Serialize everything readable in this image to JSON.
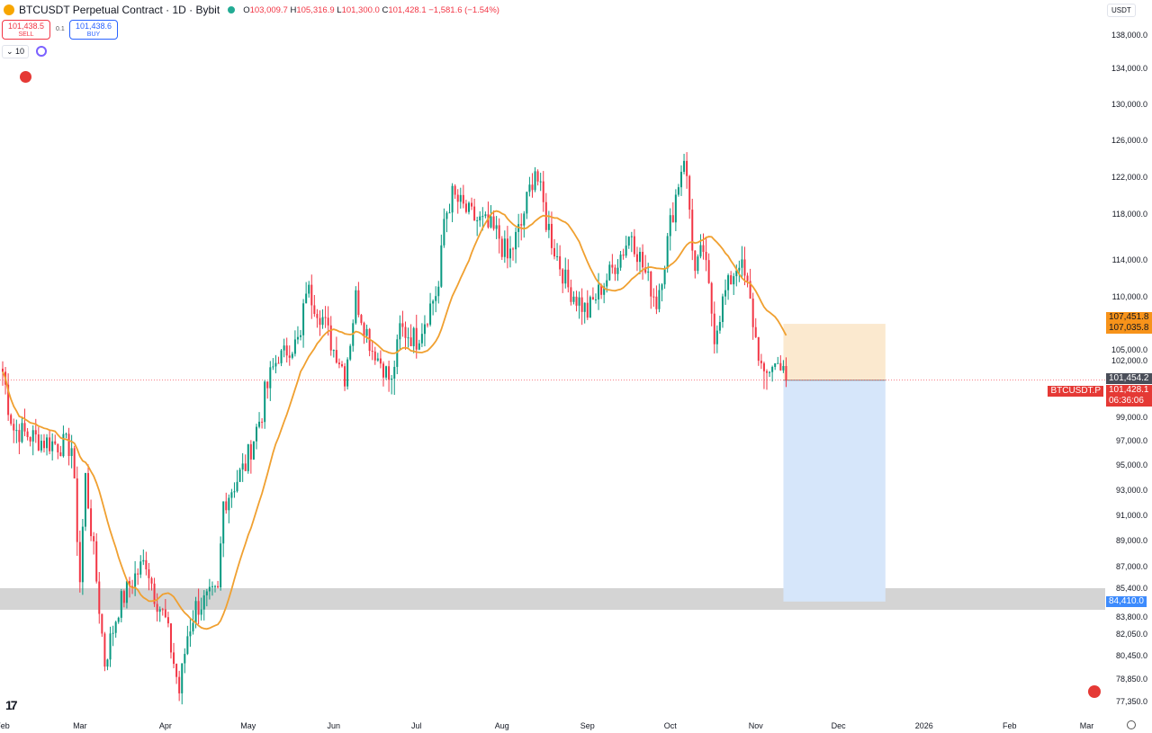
{
  "header": {
    "title": "BTCUSDT Perpetual Contract · 1D · Bybit",
    "o_label": "O",
    "o": "103,009.7",
    "h_label": "H",
    "h": "105,316.9",
    "l_label": "L",
    "l": "101,300.0",
    "c_label": "C",
    "c": "101,428.1",
    "change": "−1,581.6 (−1.54%)"
  },
  "trade": {
    "sell_price": "101,438.5",
    "sell_label": "SELL",
    "spread": "0.1",
    "buy_price": "101,438.6",
    "buy_label": "BUY",
    "lots": "10"
  },
  "currency": "USDT",
  "tags": {
    "tp1": "107,451.8",
    "tp2": "107,035.8",
    "stop_alt": "101,454.2",
    "symbol": "BTCUSDT.P",
    "last": "101,428.1",
    "countdown": "06:36:06",
    "target": "84,410.0"
  },
  "colors": {
    "up": "#089981",
    "down": "#f23645",
    "ma": "#f0a030",
    "profit": "#d6e6fa",
    "loss": "#fbe9cf",
    "zone": "#d4d4d4"
  },
  "chart_data": {
    "type": "candlestick",
    "title": "BTCUSDT Perpetual Contract · 1D · Bybit",
    "y_ticks": [
      "138,000.0",
      "134,000.0",
      "130,000.0",
      "126,000.0",
      "122,000.0",
      "118,000.0",
      "114,000.0",
      "110,000.0",
      "105,000.0",
      "102,000.0",
      "99,000.0",
      "97,000.0",
      "95,000.0",
      "93,000.0",
      "91,000.0",
      "89,000.0",
      "87,000.0",
      "85,400.0",
      "83,800.0",
      "82,050.0",
      "80,450.0",
      "78,850.0",
      "77,350.0"
    ],
    "y_tick_values": [
      138000,
      134000,
      130000,
      126000,
      122000,
      118000,
      114000,
      110000,
      105000,
      102000,
      99000,
      97000,
      95000,
      93000,
      91000,
      89000,
      87000,
      85400,
      83800,
      82050,
      80450,
      78850,
      77350
    ],
    "x_ticks": [
      "Feb",
      "Mar",
      "Apr",
      "May",
      "Jun",
      "Jul",
      "Aug",
      "Sep",
      "Oct",
      "Nov",
      "Dec",
      "2026",
      "Feb",
      "Mar"
    ],
    "x_tick_dates": [
      "2025-02-01",
      "2025-03-01",
      "2025-04-01",
      "2025-05-01",
      "2025-06-01",
      "2025-07-01",
      "2025-08-01",
      "2025-09-01",
      "2025-10-01",
      "2025-11-01",
      "2025-12-01",
      "2026-01-01",
      "2026-02-01",
      "2026-03-01"
    ],
    "close_path": [
      [
        "2025-02-01",
        102000
      ],
      [
        "2025-02-05",
        98000
      ],
      [
        "2025-02-15",
        97000
      ],
      [
        "2025-02-26",
        96500
      ],
      [
        "2025-03-01",
        86000
      ],
      [
        "2025-03-03",
        94000
      ],
      [
        "2025-03-10",
        80000
      ],
      [
        "2025-03-15",
        84000
      ],
      [
        "2025-03-20",
        86000
      ],
      [
        "2025-03-25",
        87500
      ],
      [
        "2025-03-28",
        85000
      ],
      [
        "2025-04-01",
        83000
      ],
      [
        "2025-04-06",
        78000
      ],
      [
        "2025-04-09",
        82000
      ],
      [
        "2025-04-12",
        84000
      ],
      [
        "2025-04-20",
        85000
      ],
      [
        "2025-04-22",
        92000
      ],
      [
        "2025-04-30",
        95000
      ],
      [
        "2025-05-08",
        101000
      ],
      [
        "2025-05-12",
        104000
      ],
      [
        "2025-05-20",
        106000
      ],
      [
        "2025-05-22",
        111000
      ],
      [
        "2025-05-28",
        108000
      ],
      [
        "2025-06-05",
        102000
      ],
      [
        "2025-06-09",
        110000
      ],
      [
        "2025-06-15",
        105000
      ],
      [
        "2025-06-22",
        101000
      ],
      [
        "2025-06-25",
        107000
      ],
      [
        "2025-07-01",
        106000
      ],
      [
        "2025-07-09",
        111000
      ],
      [
        "2025-07-11",
        117500
      ],
      [
        "2025-07-14",
        120000
      ],
      [
        "2025-07-20",
        118000
      ],
      [
        "2025-07-31",
        116000
      ],
      [
        "2025-08-03",
        114000
      ],
      [
        "2025-08-08",
        117000
      ],
      [
        "2025-08-13",
        123000
      ],
      [
        "2025-08-17",
        117500
      ],
      [
        "2025-08-25",
        111000
      ],
      [
        "2025-09-01",
        108500
      ],
      [
        "2025-09-10",
        113000
      ],
      [
        "2025-09-17",
        116500
      ],
      [
        "2025-09-22",
        112500
      ],
      [
        "2025-09-26",
        109500
      ],
      [
        "2025-10-01",
        117000
      ],
      [
        "2025-10-06",
        124500
      ],
      [
        "2025-10-10",
        112500
      ],
      [
        "2025-10-13",
        115000
      ],
      [
        "2025-10-17",
        106500
      ],
      [
        "2025-10-21",
        110500
      ],
      [
        "2025-10-26",
        114000
      ],
      [
        "2025-10-29",
        111000
      ],
      [
        "2025-11-04",
        101000
      ],
      [
        "2025-11-07",
        103000
      ],
      [
        "2025-11-11",
        103000
      ],
      [
        "2025-11-12",
        101428.1
      ]
    ],
    "moving_average_period": 20,
    "position": {
      "type": "short",
      "entry": 101428.1,
      "stop": 107451.8,
      "target": 84410.0,
      "end_date": "2025-12-18"
    },
    "support_zone": [
      83800,
      85400
    ],
    "grid": false
  }
}
